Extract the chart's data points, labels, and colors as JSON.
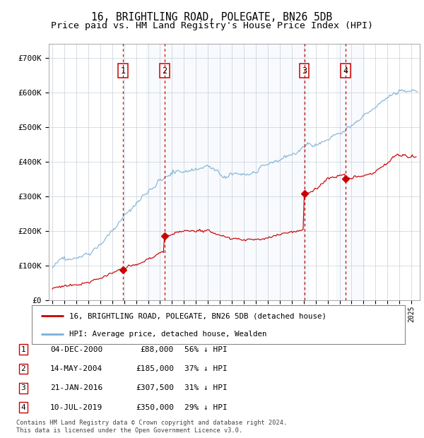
{
  "title1": "16, BRIGHTLING ROAD, POLEGATE, BN26 5DB",
  "title2": "Price paid vs. HM Land Registry's House Price Index (HPI)",
  "yticks": [
    0,
    100000,
    200000,
    300000,
    400000,
    500000,
    600000,
    700000
  ],
  "ytick_labels": [
    "£0",
    "£100K",
    "£200K",
    "£300K",
    "£400K",
    "£500K",
    "£600K",
    "£700K"
  ],
  "xlim_start": 1994.7,
  "xlim_end": 2025.7,
  "ylim": [
    0,
    740000
  ],
  "transactions": [
    {
      "label": "1",
      "date_year": 2000.92,
      "price": 88000,
      "date_str": "04-DEC-2000",
      "hpi_pct": "56%"
    },
    {
      "label": "2",
      "date_year": 2004.37,
      "price": 185000,
      "date_str": "14-MAY-2004",
      "hpi_pct": "37%"
    },
    {
      "label": "3",
      "date_year": 2016.05,
      "price": 307500,
      "date_str": "21-JAN-2016",
      "hpi_pct": "31%"
    },
    {
      "label": "4",
      "date_year": 2019.52,
      "price": 350000,
      "date_str": "10-JUL-2019",
      "hpi_pct": "29%"
    }
  ],
  "legend_property_label": "16, BRIGHTLING ROAD, POLEGATE, BN26 5DB (detached house)",
  "legend_hpi_label": "HPI: Average price, detached house, Wealden",
  "footnote": "Contains HM Land Registry data © Crown copyright and database right 2024.\nThis data is licensed under the Open Government Licence v3.0.",
  "plot_bg": "#ffffff",
  "hpi_color": "#7bafd4",
  "property_color": "#cc0000",
  "vline_color": "#cc0000",
  "shade_color": "#dce8f5",
  "title_fontsize": 10.5,
  "subtitle_fontsize": 9.5,
  "hpi_seed": 42,
  "prop_seed": 99
}
